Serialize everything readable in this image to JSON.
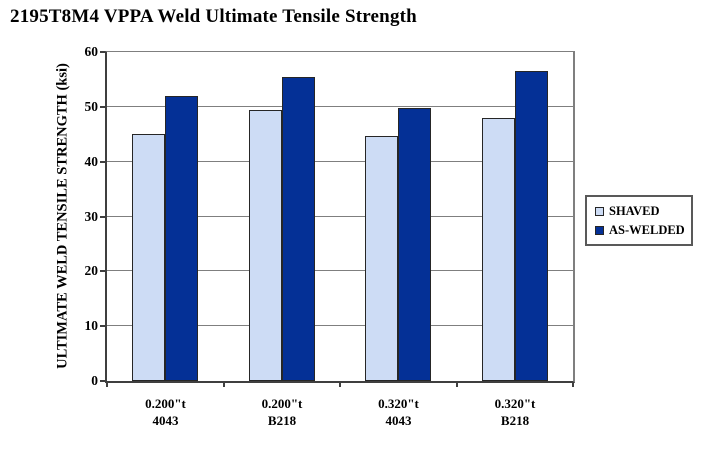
{
  "chart_data": {
    "type": "bar",
    "title": "2195T8M4 VPPA Weld Ultimate Tensile Strength",
    "xlabel": "",
    "ylabel": "ULTIMATE WELD TENSILE STRENGTH (ksi)",
    "ylim": [
      0,
      60
    ],
    "yticks": [
      0,
      10,
      20,
      30,
      40,
      50,
      60
    ],
    "grid": true,
    "legend_position": "right",
    "categories": [
      {
        "line1": "0.200\"t",
        "line2": "4043"
      },
      {
        "line1": "0.200\"t",
        "line2": "B218"
      },
      {
        "line1": "0.320\"t",
        "line2": "4043"
      },
      {
        "line1": "0.320\"t",
        "line2": "B218"
      }
    ],
    "series": [
      {
        "name": "SHAVED",
        "color": "#cddcf5",
        "values": [
          45.0,
          49.4,
          44.7,
          47.9
        ]
      },
      {
        "name": "AS-WELDED",
        "color": "#043096",
        "values": [
          52.0,
          55.4,
          49.7,
          56.5
        ]
      }
    ]
  },
  "colors": {
    "background": "#ffffff",
    "grid": "#7f7f7f",
    "axis": "#3f3f3f",
    "bar_border": "#262626",
    "legend_border": "#595959",
    "text": "#000000"
  }
}
